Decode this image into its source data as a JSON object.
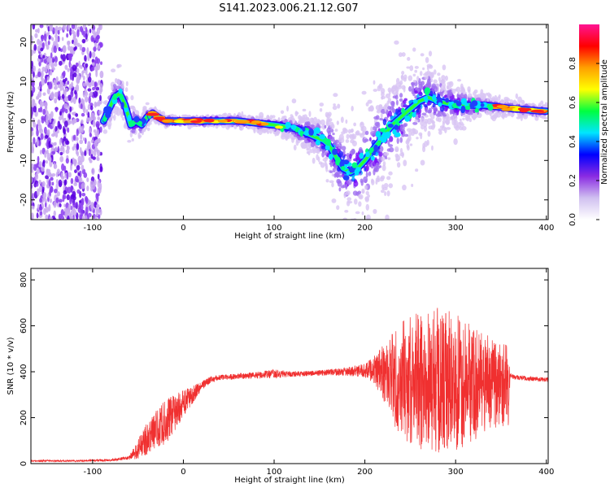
{
  "title": "S141.2023.006.21.12.G07",
  "chart_data": [
    {
      "type": "heatmap",
      "xlabel": "Height of straight line (km)",
      "ylabel": "Frequency (Hz)",
      "xlim": [
        -168,
        402
      ],
      "ylim": [
        -25,
        24.5
      ],
      "xticks": [
        -100,
        0,
        100,
        200,
        300,
        400
      ],
      "yticks": [
        -20,
        -10,
        0,
        10,
        20
      ],
      "colorbar": {
        "label": "Normalized spectral amplitude",
        "range": [
          0.0,
          1.0
        ],
        "ticks": [
          0.0,
          0.2,
          0.4,
          0.6,
          0.8
        ],
        "colors": [
          "#ffffff",
          "#c8a8f0",
          "#8800ff",
          "#0000ff",
          "#00e6ff",
          "#00ff00",
          "#ffff00",
          "#ff8800",
          "#ff0000",
          "#ff1493"
        ]
      },
      "noise_region_x": [
        -168,
        -90
      ],
      "ridge": {
        "x": [
          -88,
          -82,
          -76,
          -70,
          -64,
          -58,
          -52,
          -46,
          -40,
          -34,
          -28,
          -20,
          -10,
          0,
          20,
          40,
          60,
          80,
          100,
          115,
          125,
          135,
          145,
          155,
          160,
          168,
          176,
          184,
          192,
          200,
          210,
          220,
          230,
          240,
          250,
          260,
          270,
          280,
          290,
          300,
          310,
          320,
          330,
          340,
          350,
          360,
          370,
          380,
          390,
          400
        ],
        "y": [
          0,
          3,
          6,
          7,
          4,
          -1,
          0,
          -1,
          1,
          2,
          1,
          0,
          0,
          0,
          0,
          0,
          0,
          -0.5,
          -1,
          -1.5,
          -2,
          -3,
          -4,
          -5,
          -6,
          -9,
          -12,
          -13,
          -12,
          -10,
          -7,
          -4,
          -1,
          1,
          3,
          5,
          6,
          5,
          4.5,
          4,
          4,
          4,
          4,
          3.8,
          3.5,
          3.2,
          3,
          2.8,
          2.6,
          2.5
        ],
        "spread": [
          2,
          3,
          3,
          3,
          3,
          3,
          2,
          1.5,
          1.5,
          1,
          0.8,
          0.6,
          0.5,
          0.5,
          0.5,
          0.5,
          0.6,
          0.8,
          1,
          1.5,
          2,
          2.5,
          3,
          4,
          5,
          6,
          7,
          7,
          7,
          7,
          7,
          7,
          7,
          7,
          6,
          6,
          5,
          4,
          3.5,
          3,
          2.5,
          2,
          1.5,
          1.2,
          1,
          1,
          1,
          0.8,
          0.8,
          0.8
        ]
      }
    },
    {
      "type": "line",
      "xlabel": "Height of straight line (km)",
      "ylabel": "SNR (10 * v/v)",
      "xlim": [
        -168,
        402
      ],
      "ylim": [
        0,
        850
      ],
      "xticks": [
        -100,
        0,
        100,
        200,
        300,
        400
      ],
      "yticks": [
        0,
        200,
        400,
        600,
        800
      ],
      "color": "#f03030",
      "envelope": {
        "x": [
          -168,
          -120,
          -80,
          -60,
          -50,
          -45,
          -40,
          -30,
          -20,
          -10,
          0,
          10,
          20,
          30,
          40,
          60,
          80,
          100,
          120,
          150,
          180,
          200,
          210,
          220,
          230,
          240,
          250,
          260,
          270,
          280,
          290,
          300,
          310,
          320,
          330,
          340,
          350,
          355,
          358,
          360,
          380,
          402
        ],
        "mean": [
          12,
          12,
          15,
          25,
          60,
          90,
          110,
          150,
          180,
          220,
          260,
          300,
          340,
          365,
          375,
          380,
          385,
          390,
          390,
          395,
          400,
          405,
          410,
          400,
          380,
          370,
          360,
          360,
          360,
          350,
          350,
          350,
          350,
          350,
          350,
          350,
          340,
          340,
          340,
          380,
          370,
          365
        ],
        "amp": [
          4,
          4,
          5,
          8,
          40,
          60,
          70,
          80,
          100,
          80,
          60,
          40,
          20,
          15,
          12,
          12,
          15,
          20,
          12,
          12,
          18,
          30,
          60,
          120,
          200,
          250,
          280,
          300,
          320,
          330,
          320,
          300,
          280,
          250,
          220,
          200,
          180,
          180,
          180,
          12,
          10,
          10
        ]
      }
    }
  ]
}
